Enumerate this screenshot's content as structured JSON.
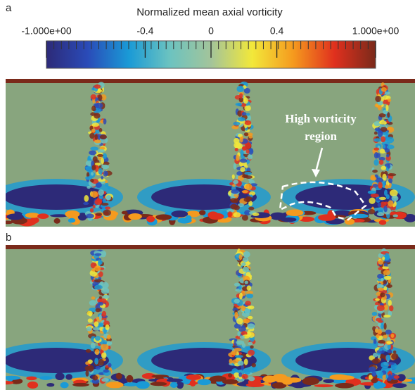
{
  "chart_data": {
    "type": "colorbar",
    "title": "Normalized mean axial vorticity",
    "xlim": [
      -1,
      1
    ],
    "xticks": [
      {
        "value": -1,
        "label": "-1.000e+00"
      },
      -0.4,
      0,
      0.4,
      {
        "value": 1,
        "label": "1.000e+00"
      }
    ],
    "colormap": [
      "#2d2a78",
      "#2a4bb8",
      "#1a9ad6",
      "#6cc3c0",
      "#a3c49a",
      "#f2e83a",
      "#f59a1e",
      "#e0301e",
      "#7a2a1a"
    ],
    "panels": [
      "a",
      "b"
    ],
    "annotation": [
      "High vorticity",
      "region"
    ]
  }
}
